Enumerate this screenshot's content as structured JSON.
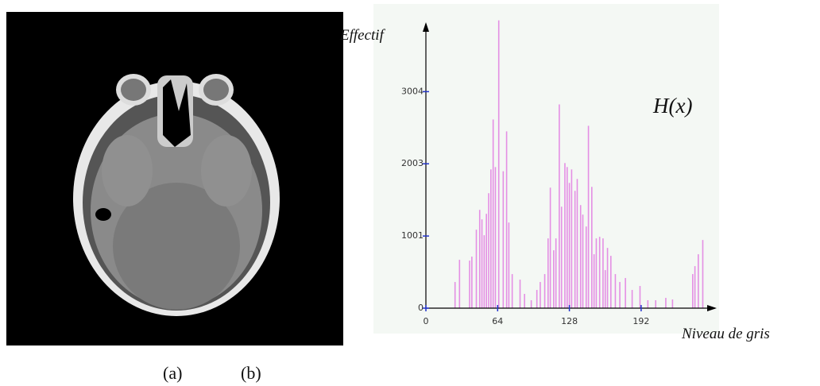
{
  "chart_data": {
    "type": "bar",
    "y_label": "Effectif",
    "x_label": "Niveau de gris",
    "annotation": "H(x)",
    "x": [
      26,
      30,
      39,
      41,
      45,
      48,
      50,
      52,
      54,
      56,
      58,
      60,
      62,
      65,
      69,
      72,
      74,
      77,
      84,
      88,
      94,
      99,
      102,
      106,
      109,
      111,
      114,
      116,
      119,
      121,
      124,
      126,
      128,
      130,
      133,
      135,
      138,
      140,
      143,
      145,
      148,
      150,
      152,
      155,
      158,
      160,
      162,
      165,
      169,
      173,
      178,
      184,
      191,
      198,
      205,
      214,
      220,
      238,
      240,
      243,
      247
    ],
    "values": [
      363,
      671,
      660,
      715,
      1089,
      1364,
      1232,
      1012,
      1309,
      1595,
      1925,
      2618,
      1958,
      3993,
      1900,
      2453,
      1188,
      473,
      396,
      198,
      110,
      253,
      363,
      473,
      968,
      1672,
      803,
      968,
      2827,
      1408,
      2013,
      1958,
      1738,
      1925,
      1628,
      1793,
      1430,
      1298,
      1133,
      2530,
      1683,
      748,
      968,
      990,
      968,
      528,
      836,
      726,
      473,
      363,
      418,
      253,
      308,
      110,
      110,
      143,
      121,
      473,
      583,
      748,
      946
    ],
    "color": "#e48fe4",
    "xlim": [
      0,
      258
    ],
    "ylim": [
      0,
      4000
    ],
    "xticks": [
      0,
      64,
      128,
      192
    ],
    "yticks": [
      0,
      1001,
      2003,
      3004
    ]
  },
  "captions": [
    "(a)",
    "(b)"
  ]
}
